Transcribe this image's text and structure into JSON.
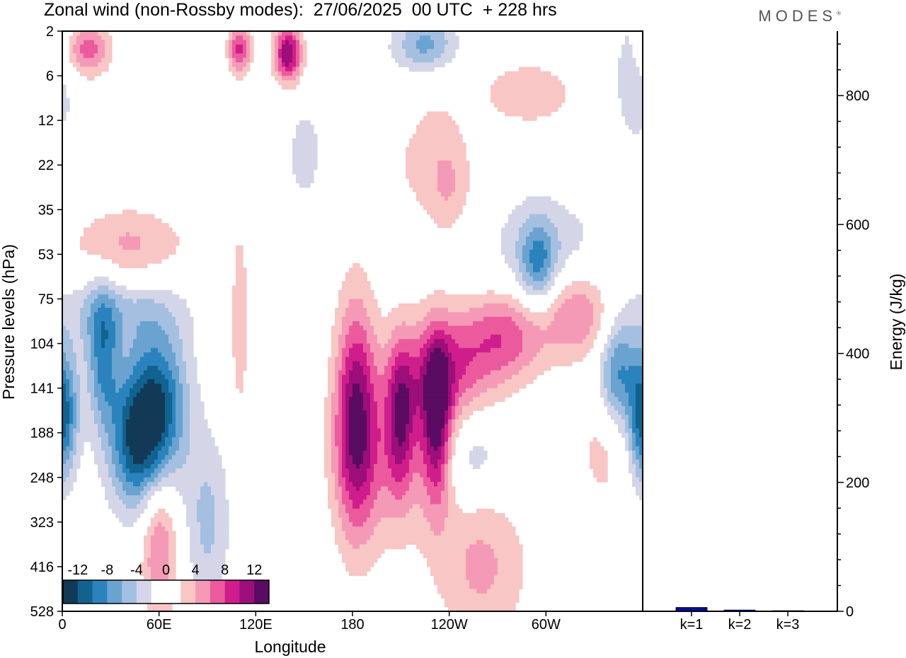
{
  "title": "Zonal wind (non-Rossby modes):  27/06/2025  00 UTC  + 228 hrs",
  "brand": "MODES",
  "brand_mark": "®",
  "colors": {
    "neg": [
      "#123a57",
      "#11628f",
      "#2a83bd",
      "#6aa3cf",
      "#a4bfe0",
      "#d4d6e8"
    ],
    "pos": [
      "#f8c6c4",
      "#f59ab6",
      "#ec5a9e",
      "#cf1e8c",
      "#9c0e7a",
      "#5a0b62"
    ],
    "zero": "#ffffff",
    "bar": "#000e8c"
  },
  "chart_data": [
    {
      "type": "heatmap",
      "xlabel": "Longitude",
      "ylabel": "Pressure levels (hPa)",
      "x_ticks": [
        "0",
        "60E",
        "120E",
        "180",
        "120W",
        "60W"
      ],
      "x_tick_values": [
        0,
        60,
        120,
        180,
        240,
        300
      ],
      "xlim": [
        0,
        360
      ],
      "y_ticks": [
        "2",
        "6",
        "12",
        "22",
        "35",
        "53",
        "75",
        "104",
        "141",
        "188",
        "248",
        "323",
        "416",
        "528"
      ],
      "colorbar_labels": [
        "-12",
        "-8",
        "-4",
        "0",
        "4",
        "8",
        "12"
      ],
      "levels": [
        -14,
        -12,
        -10,
        -8,
        -6,
        -4,
        -2,
        2,
        4,
        6,
        8,
        10,
        12,
        14
      ],
      "features": [
        {
          "lon": 232,
          "lev": 8.8,
          "amp": 11.5,
          "slon": 6.5,
          "slev": 1.3
        },
        {
          "lon": 182,
          "lev": 8.6,
          "amp": 11.2,
          "slon": 9.0,
          "slev": 1.8
        },
        {
          "lon": 210,
          "lev": 8.6,
          "amp": 9.0,
          "slon": 6.5,
          "slev": 1.2
        },
        {
          "lon": 238,
          "lev": 7.6,
          "amp": 7.5,
          "slon": 20,
          "slev": 0.9
        },
        {
          "lon": 275,
          "lev": 6.8,
          "amp": 7.2,
          "slon": 18,
          "slev": 0.75
        },
        {
          "lon": 320,
          "lev": 6.3,
          "amp": 7.0,
          "slon": 16,
          "slev": 0.7
        },
        {
          "lon": 200,
          "lev": 9.6,
          "amp": 4.2,
          "slon": 22,
          "slev": 1.4
        },
        {
          "lon": 60,
          "lev": 8.4,
          "amp": -10.5,
          "slon": 13,
          "slev": 1.2
        },
        {
          "lon": 45,
          "lev": 9.2,
          "amp": -10.0,
          "slon": 12,
          "slev": 1.1
        },
        {
          "lon": 25,
          "lev": 7.3,
          "amp": -8.0,
          "slon": 7,
          "slev": 1.1
        },
        {
          "lon": 4,
          "lev": 8.5,
          "amp": -6.0,
          "slon": 6,
          "slev": 1.0
        },
        {
          "lon": 90,
          "lev": 11.0,
          "amp": -4.5,
          "slon": 10,
          "slev": 1.4
        },
        {
          "lon": 345,
          "lev": 7.7,
          "amp": -8.5,
          "slon": 9,
          "slev": 0.9
        },
        {
          "lon": 358,
          "lev": 8.8,
          "amp": -6.5,
          "slon": 5,
          "slev": 1.0
        },
        {
          "lon": 140,
          "lev": 0.5,
          "amp": 12.0,
          "slon": 6,
          "slev": 0.45
        },
        {
          "lon": 110,
          "lev": 0.4,
          "amp": 8.5,
          "slon": 5,
          "slev": 0.4
        },
        {
          "lon": 15,
          "lev": 0.4,
          "amp": 7.5,
          "slon": 10,
          "slev": 0.45
        },
        {
          "lon": 225,
          "lev": 0.3,
          "amp": -7.5,
          "slon": 14,
          "slev": 0.45
        },
        {
          "lon": 200,
          "lev": 1.6,
          "amp": -3.5,
          "slon": 22,
          "slev": 1.0
        },
        {
          "lon": 215,
          "lev": 2.0,
          "amp": 4.0,
          "slon": 22,
          "slev": 1.4
        },
        {
          "lon": 290,
          "lev": 1.4,
          "amp": 3.8,
          "slon": 20,
          "slev": 0.5
        },
        {
          "lon": 300,
          "lev": 5.0,
          "amp": -3.5,
          "slon": 30,
          "slev": 1.0
        },
        {
          "lon": 295,
          "lev": 5.2,
          "amp": -6.5,
          "slon": 8,
          "slev": 0.7
        },
        {
          "lon": 40,
          "lev": 4.8,
          "amp": 4.5,
          "slon": 26,
          "slev": 0.6
        },
        {
          "lon": 35,
          "lev": 6.3,
          "amp": -4.0,
          "slon": 30,
          "slev": 0.6
        },
        {
          "lon": 60,
          "lev": 11.5,
          "amp": 6.5,
          "slon": 8,
          "slev": 1.2
        },
        {
          "lon": 260,
          "lev": 12.0,
          "amp": 4.5,
          "slon": 20,
          "slev": 1.2
        },
        {
          "lon": 255,
          "lev": 9.5,
          "amp": -3.5,
          "slon": 14,
          "slev": 0.7
        },
        {
          "lon": 110,
          "lev": 6.5,
          "amp": 3.5,
          "slon": 4,
          "slev": 1.6
        },
        {
          "lon": 240,
          "lev": 3.5,
          "amp": 3.5,
          "slon": 10,
          "slev": 0.8
        },
        {
          "lon": 150,
          "lev": 2.8,
          "amp": -3.0,
          "slon": 8,
          "slev": 0.8
        },
        {
          "lon": 335,
          "lev": 9.3,
          "amp": 3.0,
          "slon": 10,
          "slev": 1.0
        },
        {
          "lon": 355,
          "lev": 1.0,
          "amp": -3.0,
          "slon": 12,
          "slev": 1.4
        }
      ]
    },
    {
      "type": "bar",
      "categories": [
        "k=1",
        "k=2",
        "k=3"
      ],
      "values": [
        6,
        2,
        1
      ],
      "ylabel": "Energy (J/kg)",
      "y_ticks": [
        "0",
        "200",
        "400",
        "600",
        "800"
      ],
      "y_tick_values": [
        0,
        200,
        400,
        600,
        800
      ],
      "ylim": [
        0,
        900
      ]
    }
  ]
}
